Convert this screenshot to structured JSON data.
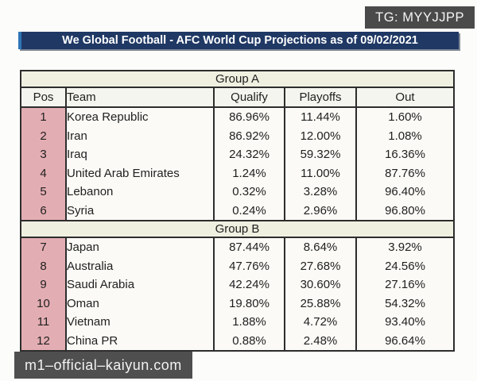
{
  "badge": {
    "text": "TG: MYYJJPP"
  },
  "title_bar": {
    "text": "We Global Football - AFC World Cup Projections as of 09/02/2021"
  },
  "watermark": {
    "text": "m1–official–kaiyun.com"
  },
  "colors": {
    "title_navy": "#1f3864",
    "title_accent_blue": "#2e75b6",
    "group_band_cream": "#eff0e0",
    "pos_column_pink": "#e3aeb3",
    "overlay_gray": "#4a4a4a",
    "table_border": "#2d2d2d"
  },
  "chart_data": {
    "type": "table",
    "title": "We Global Football - AFC World Cup Projections as of 09/02/2021",
    "columns": [
      "Pos",
      "Team",
      "Qualify",
      "Playoffs",
      "Out"
    ],
    "groups": [
      {
        "label": "Group A",
        "rows": [
          [
            "1",
            "Korea Republic",
            "86.96%",
            "11.44%",
            "1.60%"
          ],
          [
            "2",
            "Iran",
            "86.92%",
            "12.00%",
            "1.08%"
          ],
          [
            "3",
            "Iraq",
            "24.32%",
            "59.32%",
            "16.36%"
          ],
          [
            "4",
            "United Arab Emirates",
            "1.24%",
            "11.00%",
            "87.76%"
          ],
          [
            "5",
            "Lebanon",
            "0.32%",
            "3.28%",
            "96.40%"
          ],
          [
            "6",
            "Syria",
            "0.24%",
            "2.96%",
            "96.80%"
          ]
        ]
      },
      {
        "label": "Group B",
        "rows": [
          [
            "7",
            "Japan",
            "87.44%",
            "8.64%",
            "3.92%"
          ],
          [
            "8",
            "Australia",
            "47.76%",
            "27.68%",
            "24.56%"
          ],
          [
            "9",
            "Saudi Arabia",
            "42.24%",
            "30.60%",
            "27.16%"
          ],
          [
            "10",
            "Oman",
            "19.80%",
            "25.88%",
            "54.32%"
          ],
          [
            "11",
            "Vietnam",
            "1.88%",
            "4.72%",
            "93.40%"
          ],
          [
            "12",
            "China PR",
            "0.88%",
            "2.48%",
            "96.64%"
          ]
        ]
      }
    ]
  }
}
